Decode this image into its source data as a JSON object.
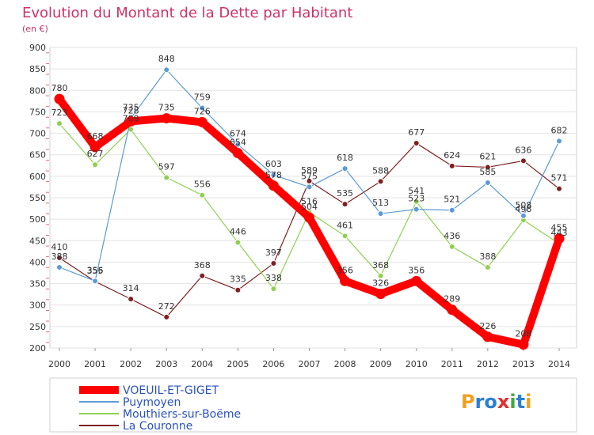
{
  "chart_data": {
    "type": "line",
    "title": "Evolution du Montant de la Dette par Habitant",
    "subtitle": "(en €)",
    "xlabel": "",
    "ylabel": "",
    "categories": [
      "2000",
      "2001",
      "2002",
      "2003",
      "2004",
      "2005",
      "2006",
      "2007",
      "2008",
      "2009",
      "2010",
      "2011",
      "2012",
      "2013",
      "2014"
    ],
    "ylim": [
      200,
      900
    ],
    "yticks": [
      200,
      250,
      300,
      350,
      400,
      450,
      500,
      550,
      600,
      650,
      700,
      750,
      800,
      850,
      900
    ],
    "grid": true,
    "legend_position": "bottom-left",
    "series": [
      {
        "name": "VOEUIL-ET-GIGET",
        "color": "#ff0000",
        "values": [
          780,
          668,
          728,
          735,
          726,
          654,
          578,
          504,
          356,
          326,
          356,
          289,
          226,
          208,
          455
        ]
      },
      {
        "name": "Puymoyen",
        "color": "#5b9bd5",
        "values": [
          388,
          356,
          735,
          848,
          759,
          674,
          603,
          575,
          618,
          513,
          523,
          521,
          585,
          508,
          682
        ]
      },
      {
        "name": "Mouthiers-sur-Boëme",
        "color": "#90d050",
        "values": [
          723,
          627,
          709,
          597,
          556,
          446,
          338,
          516,
          461,
          368,
          541,
          436,
          388,
          498,
          443
        ]
      },
      {
        "name": "La Couronne",
        "color": "#7f1f1f",
        "values": [
          410,
          355,
          314,
          272,
          368,
          335,
          397,
          589,
          535,
          588,
          677,
          624,
          621,
          636,
          571
        ]
      }
    ]
  },
  "branding": {
    "logo_text": "Proxiti"
  }
}
